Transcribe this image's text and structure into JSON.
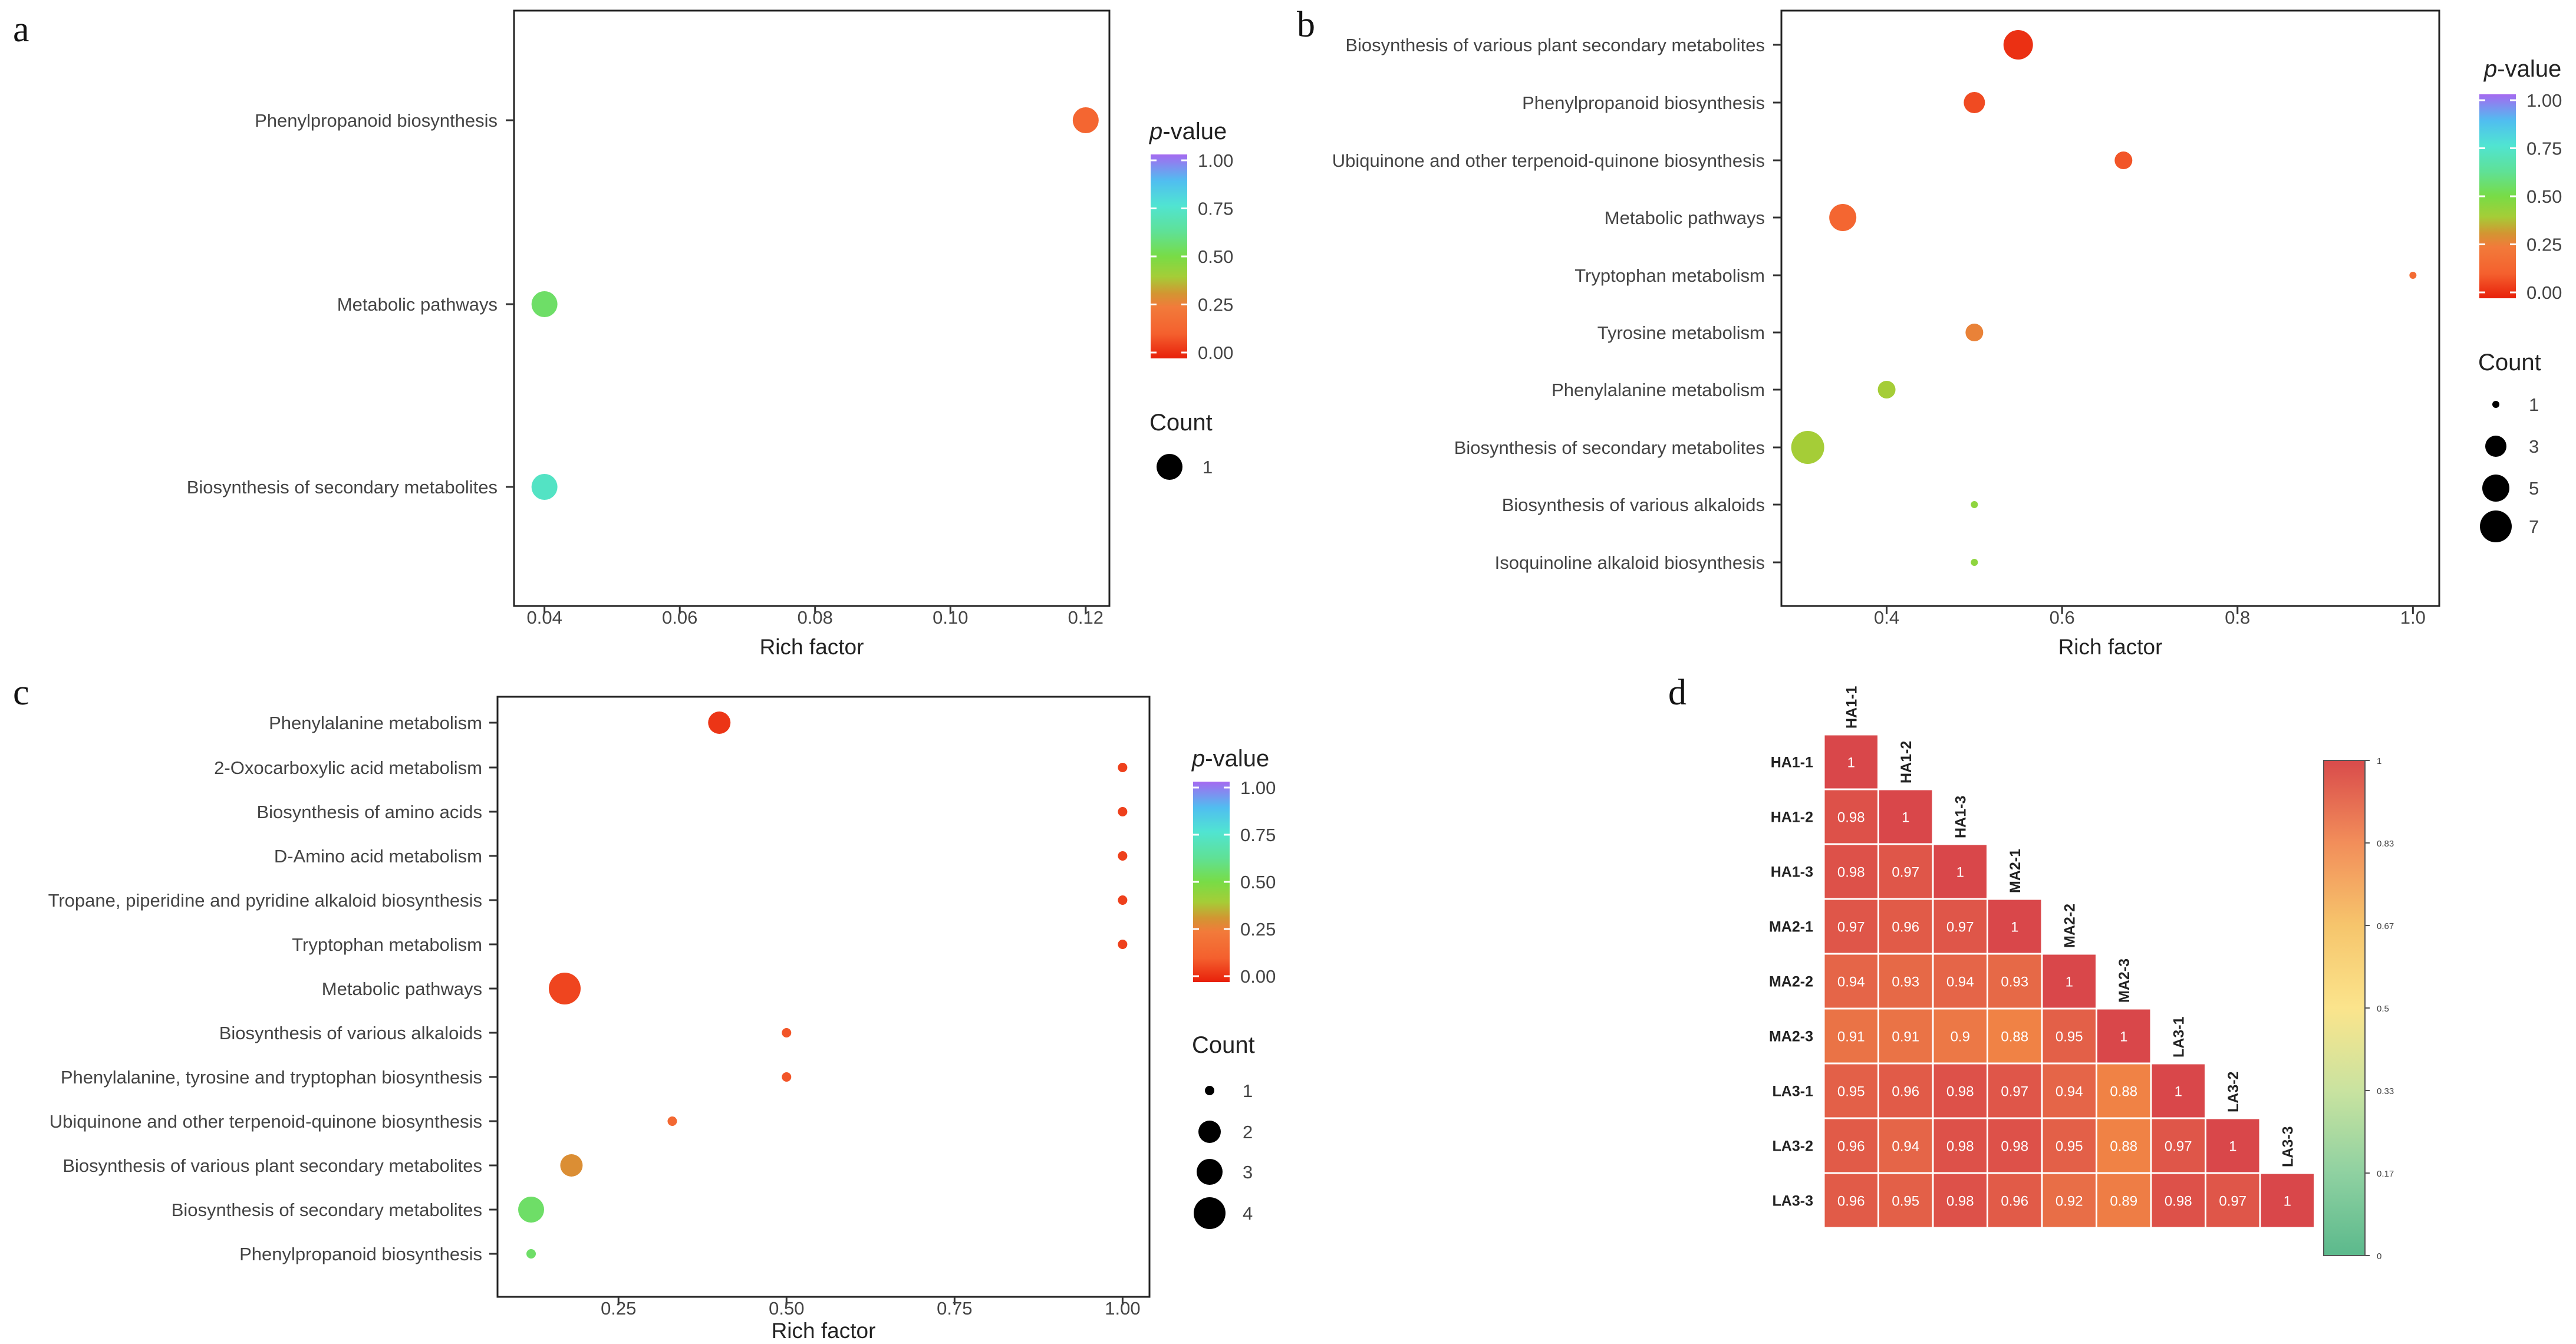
{
  "panels": [
    {
      "id": "a",
      "label": "a",
      "type": "scatter",
      "xlabel": "Rich factor",
      "xticks": [
        0.04,
        0.06,
        0.08,
        0.1,
        0.12
      ],
      "xtick_labels": [
        "0.04",
        "0.06",
        "0.08",
        "0.10",
        "0.12"
      ],
      "xlim": [
        0.0355,
        0.1235
      ],
      "categories": [
        "Phenylpropanoid biosynthesis",
        "Metabolic pathways",
        "Biosynthesis of secondary metabolites"
      ],
      "points": [
        {
          "category": "Phenylpropanoid biosynthesis",
          "x": 0.12,
          "count": 1,
          "pvalue": 0.15
        },
        {
          "category": "Metabolic pathways",
          "x": 0.04,
          "count": 1,
          "pvalue": 0.55
        },
        {
          "category": "Biosynthesis of secondary metabolites",
          "x": 0.04,
          "count": 1,
          "pvalue": 0.72
        }
      ],
      "color_legend": {
        "title_italic": "p",
        "title_rest": "-value",
        "ticks": [
          "1.00",
          "0.75",
          "0.50",
          "0.25",
          "0.00"
        ]
      },
      "size_legend": {
        "title": "Count",
        "items": [
          1
        ]
      }
    },
    {
      "id": "b",
      "label": "b",
      "type": "scatter",
      "xlabel": "Rich factor",
      "xticks": [
        0.4,
        0.6,
        0.8,
        1.0
      ],
      "xtick_labels": [
        "0.4",
        "0.6",
        "0.8",
        "1.0"
      ],
      "xlim": [
        0.28,
        1.03
      ],
      "categories": [
        "Biosynthesis of various plant secondary metabolites",
        "Phenylpropanoid biosynthesis",
        "Ubiquinone and other terpenoid-quinone biosynthesis",
        "Metabolic pathways",
        "Tryptophan metabolism",
        "Tyrosine metabolism",
        "Phenylalanine metabolism",
        "Biosynthesis of secondary metabolites",
        "Biosynthesis of various alkaloids",
        "Isoquinoline alkaloid biosynthesis"
      ],
      "points": [
        {
          "category": "Biosynthesis of various plant secondary metabolites",
          "x": 0.55,
          "count": 4,
          "pvalue": 0.03
        },
        {
          "category": "Phenylpropanoid biosynthesis",
          "x": 0.5,
          "count": 3,
          "pvalue": 0.08
        },
        {
          "category": "Ubiquinone and other terpenoid-quinone biosynthesis",
          "x": 0.67,
          "count": 2,
          "pvalue": 0.1
        },
        {
          "category": "Metabolic pathways",
          "x": 0.35,
          "count": 5,
          "pvalue": 0.15
        },
        {
          "category": "Tryptophan metabolism",
          "x": 1.0,
          "count": 1,
          "pvalue": 0.18
        },
        {
          "category": "Tyrosine metabolism",
          "x": 0.5,
          "count": 2,
          "pvalue": 0.27
        },
        {
          "category": "Phenylalanine metabolism",
          "x": 0.4,
          "count": 2,
          "pvalue": 0.4
        },
        {
          "category": "Biosynthesis of secondary metabolites",
          "x": 0.31,
          "count": 6,
          "pvalue": 0.4
        },
        {
          "category": "Biosynthesis of various alkaloids",
          "x": 0.5,
          "count": 1,
          "pvalue": 0.45
        },
        {
          "category": "Isoquinoline alkaloid biosynthesis",
          "x": 0.5,
          "count": 1,
          "pvalue": 0.45
        }
      ],
      "color_legend": {
        "title_italic": "p",
        "title_rest": "-value",
        "ticks": [
          "1.00",
          "0.75",
          "0.50",
          "0.25",
          "0.00"
        ]
      },
      "size_legend": {
        "title": "Count",
        "items": [
          1,
          3,
          5,
          7
        ]
      }
    },
    {
      "id": "c",
      "label": "c",
      "type": "scatter",
      "xlabel": "Rich factor",
      "xticks": [
        0.25,
        0.5,
        0.75,
        1.0
      ],
      "xtick_labels": [
        "0.25",
        "0.50",
        "0.75",
        "1.00"
      ],
      "xlim": [
        0.07,
        1.04
      ],
      "categories": [
        "Phenylalanine metabolism",
        "2-Oxocarboxylic acid metabolism",
        "Biosynthesis of amino acids",
        "D-Amino acid metabolism",
        "Tropane, piperidine and pyridine alkaloid biosynthesis",
        "Tryptophan metabolism",
        "Metabolic pathways",
        "Biosynthesis of various alkaloids",
        "Phenylalanine, tyrosine and tryptophan biosynthesis",
        "Ubiquinone and other terpenoid-quinone biosynthesis",
        "Biosynthesis of various plant secondary metabolites",
        "Biosynthesis of secondary metabolites",
        "Phenylpropanoid biosynthesis"
      ],
      "points": [
        {
          "category": "Phenylalanine metabolism",
          "x": 0.4,
          "count": 2,
          "pvalue": 0.04
        },
        {
          "category": "2-Oxocarboxylic acid metabolism",
          "x": 1.0,
          "count": 1,
          "pvalue": 0.06
        },
        {
          "category": "Biosynthesis of amino acids",
          "x": 1.0,
          "count": 1,
          "pvalue": 0.06
        },
        {
          "category": "D-Amino acid metabolism",
          "x": 1.0,
          "count": 1,
          "pvalue": 0.06
        },
        {
          "category": "Tropane, piperidine and pyridine alkaloid biosynthesis",
          "x": 1.0,
          "count": 1,
          "pvalue": 0.06
        },
        {
          "category": "Tryptophan metabolism",
          "x": 1.0,
          "count": 1,
          "pvalue": 0.06
        },
        {
          "category": "Metabolic pathways",
          "x": 0.17,
          "count": 4,
          "pvalue": 0.07
        },
        {
          "category": "Biosynthesis of various alkaloids",
          "x": 0.5,
          "count": 1,
          "pvalue": 0.1
        },
        {
          "category": "Phenylalanine, tyrosine and tryptophan biosynthesis",
          "x": 0.5,
          "count": 1,
          "pvalue": 0.1
        },
        {
          "category": "Ubiquinone and other terpenoid-quinone biosynthesis",
          "x": 0.33,
          "count": 1,
          "pvalue": 0.16
        },
        {
          "category": "Biosynthesis of various plant secondary metabolites",
          "x": 0.18,
          "count": 2,
          "pvalue": 0.3
        },
        {
          "category": "Biosynthesis of secondary metabolites",
          "x": 0.12,
          "count": 3,
          "pvalue": 0.55
        },
        {
          "category": "Phenylpropanoid biosynthesis",
          "x": 0.12,
          "count": 1,
          "pvalue": 0.55
        }
      ],
      "color_legend": {
        "title_italic": "p",
        "title_rest": "-value",
        "ticks": [
          "1.00",
          "0.75",
          "0.50",
          "0.25",
          "0.00"
        ]
      },
      "size_legend": {
        "title": "Count",
        "items": [
          1,
          2,
          3,
          4
        ]
      }
    }
  ],
  "heatmap": {
    "id": "d",
    "label": "d",
    "type": "heatmap",
    "labels": [
      "HA1-1",
      "HA1-2",
      "HA1-3",
      "MA2-1",
      "MA2-2",
      "MA2-3",
      "LA3-1",
      "LA3-2",
      "LA3-3"
    ],
    "matrix": [
      [
        1
      ],
      [
        0.98,
        1
      ],
      [
        0.98,
        0.97,
        1
      ],
      [
        0.97,
        0.96,
        0.97,
        1
      ],
      [
        0.94,
        0.93,
        0.94,
        0.93,
        1
      ],
      [
        0.91,
        0.91,
        0.9,
        0.88,
        0.95,
        1
      ],
      [
        0.95,
        0.96,
        0.98,
        0.97,
        0.94,
        0.88,
        1
      ],
      [
        0.96,
        0.94,
        0.98,
        0.98,
        0.95,
        0.88,
        0.97,
        1
      ],
      [
        0.96,
        0.95,
        0.98,
        0.96,
        0.92,
        0.89,
        0.98,
        0.97,
        1
      ]
    ],
    "colorbar_ticks": [
      "1",
      "0.83",
      "0.67",
      "0.5",
      "0.33",
      "0.17",
      "0"
    ],
    "colorbar_colors": [
      "#d94b4b",
      "#f28e5a",
      "#f6c56c",
      "#fbe48c",
      "#c9e3a0",
      "#8fd1a1",
      "#5bb98c"
    ]
  },
  "colors": {
    "pvalue_scale": [
      "#e8200a",
      "#f46a3c",
      "#8ad63b",
      "#5be7c0",
      "#48c8f2",
      "#a06bf1"
    ],
    "heat_cell_high": "#d9474a",
    "heat_cell_low": "#f08245"
  }
}
